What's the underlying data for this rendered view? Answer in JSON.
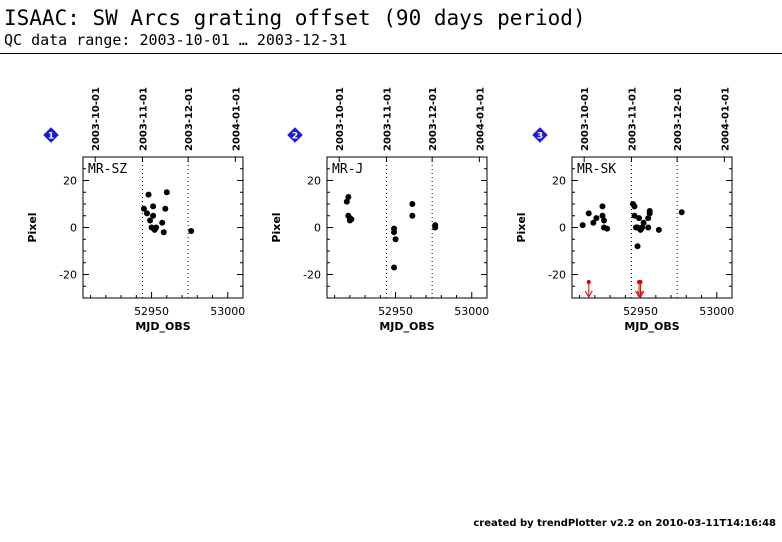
{
  "title": "ISAAC: SW Arcs grating offset (90 days period)",
  "subtitle": "QC data range: 2003-10-01 … 2003-12-31",
  "footer": "created by trendPlotter v2.2 on 2010-03-11T14:16:48",
  "chart_data": [
    {
      "type": "scatter",
      "panel_number": "1",
      "label": "MR-SZ",
      "xlabel": "MJD_OBS",
      "ylabel": "Pixel",
      "xlim": [
        52905,
        53010
      ],
      "ylim": [
        -30,
        30
      ],
      "x_ticks": [
        52950,
        53000
      ],
      "y_ticks": [
        -20,
        0,
        20
      ],
      "top_date_labels": [
        "2003-10-01",
        "2003-11-01",
        "2003-12-01",
        "2004-01-01"
      ],
      "top_date_mjd": [
        52913,
        52944,
        52974,
        53005
      ],
      "dotted_lines_mjd": [
        52944,
        52974
      ],
      "marker_color": "#000000",
      "points": [
        {
          "x": 52945,
          "y": 8
        },
        {
          "x": 52947,
          "y": 6
        },
        {
          "x": 52948,
          "y": 14
        },
        {
          "x": 52949,
          "y": 3
        },
        {
          "x": 52950,
          "y": 0
        },
        {
          "x": 52951,
          "y": 9
        },
        {
          "x": 52951,
          "y": 5
        },
        {
          "x": 52952,
          "y": -1
        },
        {
          "x": 52953,
          "y": 0
        },
        {
          "x": 52957,
          "y": 2
        },
        {
          "x": 52958,
          "y": -2
        },
        {
          "x": 52959,
          "y": 8
        },
        {
          "x": 52960,
          "y": 15
        },
        {
          "x": 52976,
          "y": -1.5
        }
      ],
      "limit_markers": []
    },
    {
      "type": "scatter",
      "panel_number": "2",
      "label": "MR-J",
      "xlabel": "MJD_OBS",
      "ylabel": "Pixel",
      "xlim": [
        52905,
        53010
      ],
      "ylim": [
        -30,
        30
      ],
      "x_ticks": [
        52950,
        53000
      ],
      "y_ticks": [
        -20,
        0,
        20
      ],
      "top_date_labels": [
        "2003-10-01",
        "2003-11-01",
        "2003-12-01",
        "2004-01-01"
      ],
      "top_date_mjd": [
        52913,
        52944,
        52974,
        53005
      ],
      "dotted_lines_mjd": [
        52944,
        52974
      ],
      "marker_color": "#000000",
      "points": [
        {
          "x": 52918,
          "y": 11
        },
        {
          "x": 52919,
          "y": 13
        },
        {
          "x": 52919,
          "y": 5
        },
        {
          "x": 52920,
          "y": 4
        },
        {
          "x": 52920,
          "y": 3
        },
        {
          "x": 52921,
          "y": 3.5
        },
        {
          "x": 52949,
          "y": -0.5
        },
        {
          "x": 52949,
          "y": -2
        },
        {
          "x": 52950,
          "y": -5
        },
        {
          "x": 52949,
          "y": -17
        },
        {
          "x": 52961,
          "y": 10
        },
        {
          "x": 52961,
          "y": 5
        },
        {
          "x": 52976,
          "y": 1
        },
        {
          "x": 52976,
          "y": 0
        }
      ],
      "limit_markers": []
    },
    {
      "type": "scatter",
      "panel_number": "3",
      "label": "MR-SK",
      "xlabel": "MJD_OBS",
      "ylabel": "Pixel",
      "xlim": [
        52905,
        53010
      ],
      "ylim": [
        -30,
        30
      ],
      "x_ticks": [
        52950,
        53000
      ],
      "y_ticks": [
        -20,
        0,
        20
      ],
      "top_date_labels": [
        "2003-10-01",
        "2003-11-01",
        "2003-12-01",
        "2004-01-01"
      ],
      "top_date_mjd": [
        52913,
        52944,
        52974,
        53005
      ],
      "dotted_lines_mjd": [
        52944,
        52974
      ],
      "marker_color": "#000000",
      "limit_color": "#dd0000",
      "points": [
        {
          "x": 52912,
          "y": 1
        },
        {
          "x": 52916,
          "y": 6
        },
        {
          "x": 52919,
          "y": 2
        },
        {
          "x": 52921,
          "y": 4
        },
        {
          "x": 52925,
          "y": 9
        },
        {
          "x": 52925,
          "y": 5
        },
        {
          "x": 52926,
          "y": 3
        },
        {
          "x": 52926,
          "y": 0
        },
        {
          "x": 52928,
          "y": -0.5
        },
        {
          "x": 52945,
          "y": 10
        },
        {
          "x": 52946,
          "y": 9
        },
        {
          "x": 52946,
          "y": 5
        },
        {
          "x": 52947,
          "y": 0
        },
        {
          "x": 52948,
          "y": -8
        },
        {
          "x": 52948,
          "y": 0
        },
        {
          "x": 52949,
          "y": 4
        },
        {
          "x": 52950,
          "y": -1
        },
        {
          "x": 52951,
          "y": 0
        },
        {
          "x": 52952,
          "y": 2
        },
        {
          "x": 52955,
          "y": 0
        },
        {
          "x": 52955,
          "y": 4
        },
        {
          "x": 52956,
          "y": 6
        },
        {
          "x": 52956,
          "y": 7
        },
        {
          "x": 52962,
          "y": -1
        },
        {
          "x": 52977,
          "y": 6.5
        }
      ],
      "limit_markers": [
        {
          "x": 52916
        },
        {
          "x": 52949
        },
        {
          "x": 52950
        }
      ]
    }
  ]
}
